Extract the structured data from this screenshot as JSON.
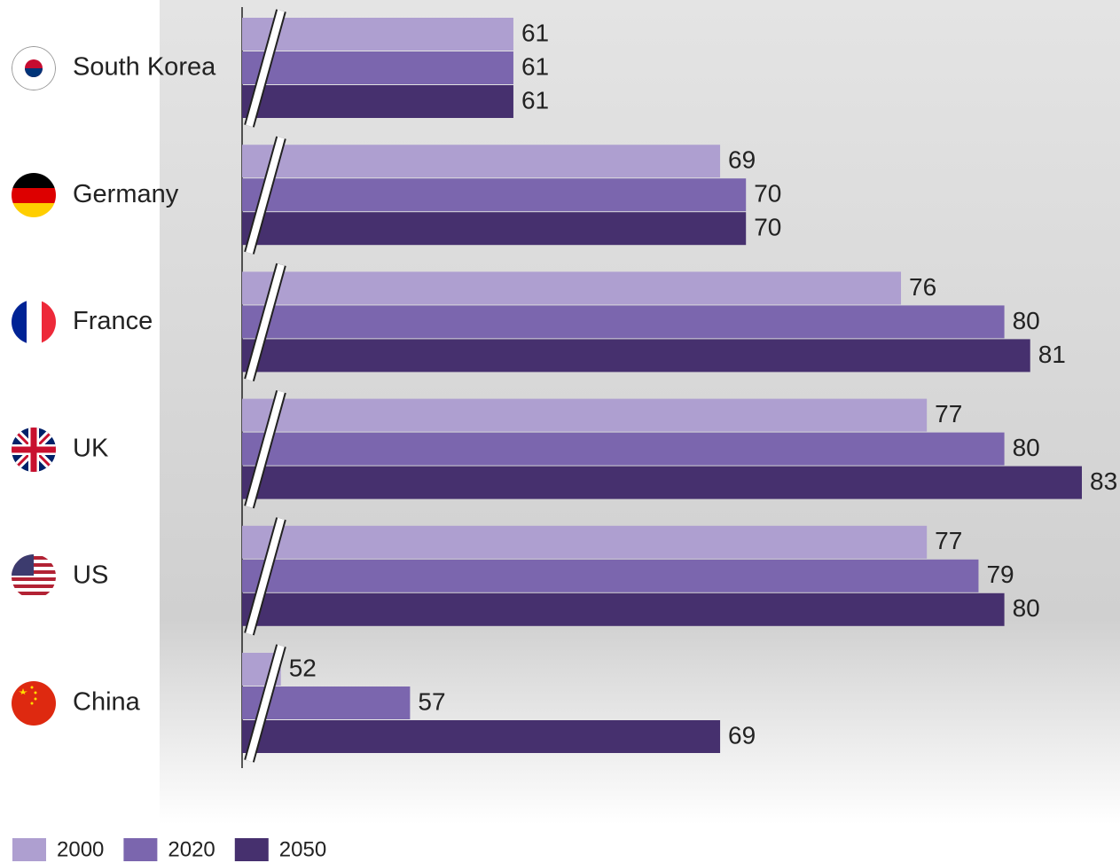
{
  "chart_data": {
    "type": "bar",
    "orientation": "horizontal",
    "categories": [
      "South Korea",
      "Germany",
      "France",
      "UK",
      "US",
      "China"
    ],
    "series": [
      {
        "name": "2000",
        "color": "#ae9fd0",
        "values": [
          61,
          69,
          76,
          77,
          77,
          52
        ]
      },
      {
        "name": "2020",
        "color": "#7b66ae",
        "values": [
          61,
          70,
          80,
          80,
          79,
          57
        ]
      },
      {
        "name": "2050",
        "color": "#46306e",
        "values": [
          61,
          70,
          81,
          83,
          80,
          69
        ]
      }
    ],
    "xlim": [
      50.5,
      83
    ],
    "axis_break": true,
    "legend": "bottom-left"
  }
}
